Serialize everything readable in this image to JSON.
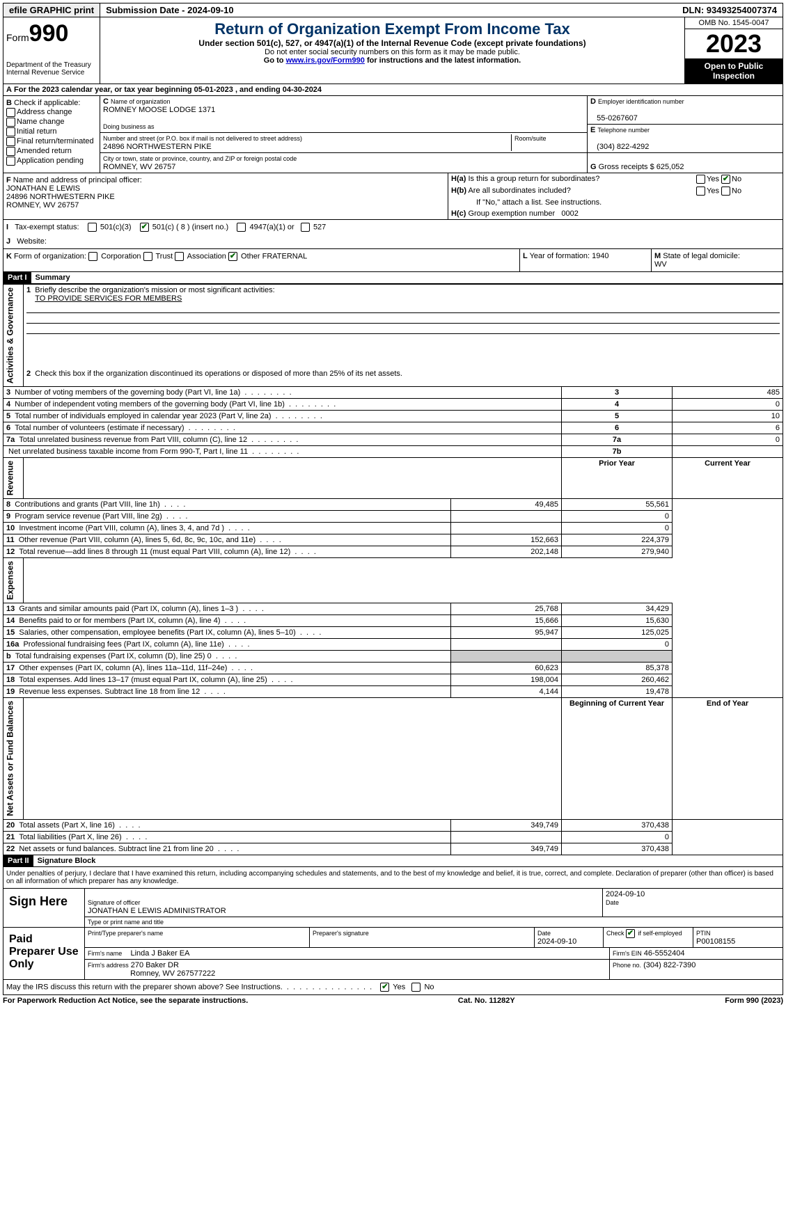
{
  "topbar": {
    "efile": "efile GRAPHIC print",
    "submission": "Submission Date - 2024-09-10",
    "dln": "DLN: 93493254007374"
  },
  "header": {
    "form_label": "Form",
    "form_number": "990",
    "dept": "Department of the Treasury",
    "irs": "Internal Revenue Service",
    "title": "Return of Organization Exempt From Income Tax",
    "subtitle": "Under section 501(c), 527, or 4947(a)(1) of the Internal Revenue Code (except private foundations)",
    "note1": "Do not enter social security numbers on this form as it may be made public.",
    "note2_pre": "Go to ",
    "note2_link": "www.irs.gov/Form990",
    "note2_post": " for instructions and the latest information.",
    "omb": "OMB No. 1545-0047",
    "year": "2023",
    "open": "Open to Public Inspection"
  },
  "A": {
    "line": "For the 2023 calendar year, or tax year beginning 05-01-2023   , and ending 04-30-2024"
  },
  "B": {
    "label": "Check if applicable:",
    "opts": [
      "Address change",
      "Name change",
      "Initial return",
      "Final return/terminated",
      "Amended return",
      "Application pending"
    ]
  },
  "C": {
    "name_label": "Name of organization",
    "name": "ROMNEY MOOSE LODGE 1371",
    "dba_label": "Doing business as",
    "dba": "",
    "addr_label": "Number and street (or P.O. box if mail is not delivered to street address)",
    "room_label": "Room/suite",
    "addr": "24896 NORTHWESTERN PIKE",
    "city_label": "City or town, state or province, country, and ZIP or foreign postal code",
    "city": "ROMNEY, WV  26757"
  },
  "D": {
    "label": "Employer identification number",
    "val": "55-0267607"
  },
  "E": {
    "label": "Telephone number",
    "val": "(304) 822-4292"
  },
  "G": {
    "label": "Gross receipts $",
    "val": "625,052"
  },
  "F": {
    "label": "Name and address of principal officer:",
    "name": "JONATHAN E LEWIS",
    "addr1": "24896 NORTHWESTERN PIKE",
    "addr2": "ROMNEY, WV  26757"
  },
  "H": {
    "a": "Is this a group return for subordinates?",
    "b": "Are all subordinates included?",
    "b_note": "If \"No,\" attach a list. See instructions.",
    "c": "Group exemption number",
    "c_val": "0002",
    "yes": "Yes",
    "no": "No"
  },
  "I": {
    "label": "Tax-exempt status:",
    "o1": "501(c)(3)",
    "o2": "501(c) ( 8 ) (insert no.)",
    "o3": "4947(a)(1) or",
    "o4": "527"
  },
  "J": {
    "label": "Website:",
    "val": ""
  },
  "K": {
    "label": "Form of organization:",
    "o1": "Corporation",
    "o2": "Trust",
    "o3": "Association",
    "o4": "Other",
    "o4_val": "FRATERNAL"
  },
  "L": {
    "label": "Year of formation:",
    "val": "1940"
  },
  "M": {
    "label": "State of legal domicile:",
    "val": "WV"
  },
  "part1": {
    "header": "Part I",
    "title": "Summary",
    "line1_label": "Briefly describe the organization's mission or most significant activities:",
    "line1_val": "TO PROVIDE SERVICES FOR MEMBERS",
    "line2": "Check this box      if the organization discontinued its operations or disposed of more than 25% of its net assets.",
    "sections": {
      "ag": "Activities & Governance",
      "rev": "Revenue",
      "exp": "Expenses",
      "na": "Net Assets or Fund Balances"
    },
    "rows_single": [
      {
        "n": "3",
        "t": "Number of voting members of the governing body (Part VI, line 1a)",
        "box": "3",
        "v": "485"
      },
      {
        "n": "4",
        "t": "Number of independent voting members of the governing body (Part VI, line 1b)",
        "box": "4",
        "v": "0"
      },
      {
        "n": "5",
        "t": "Total number of individuals employed in calendar year 2023 (Part V, line 2a)",
        "box": "5",
        "v": "10"
      },
      {
        "n": "6",
        "t": "Total number of volunteers (estimate if necessary)",
        "box": "6",
        "v": "6"
      },
      {
        "n": "7a",
        "t": "Total unrelated business revenue from Part VIII, column (C), line 12",
        "box": "7a",
        "v": "0"
      },
      {
        "n": "",
        "t": "Net unrelated business taxable income from Form 990-T, Part I, line 11",
        "box": "7b",
        "v": ""
      }
    ],
    "col_prior": "Prior Year",
    "col_current": "Current Year",
    "rows_rev": [
      {
        "n": "8",
        "t": "Contributions and grants (Part VIII, line 1h)",
        "p": "49,485",
        "c": "55,561"
      },
      {
        "n": "9",
        "t": "Program service revenue (Part VIII, line 2g)",
        "p": "",
        "c": "0"
      },
      {
        "n": "10",
        "t": "Investment income (Part VIII, column (A), lines 3, 4, and 7d )",
        "p": "",
        "c": "0"
      },
      {
        "n": "11",
        "t": "Other revenue (Part VIII, column (A), lines 5, 6d, 8c, 9c, 10c, and 11e)",
        "p": "152,663",
        "c": "224,379"
      },
      {
        "n": "12",
        "t": "Total revenue—add lines 8 through 11 (must equal Part VIII, column (A), line 12)",
        "p": "202,148",
        "c": "279,940"
      }
    ],
    "rows_exp": [
      {
        "n": "13",
        "t": "Grants and similar amounts paid (Part IX, column (A), lines 1–3 )",
        "p": "25,768",
        "c": "34,429"
      },
      {
        "n": "14",
        "t": "Benefits paid to or for members (Part IX, column (A), line 4)",
        "p": "15,666",
        "c": "15,630"
      },
      {
        "n": "15",
        "t": "Salaries, other compensation, employee benefits (Part IX, column (A), lines 5–10)",
        "p": "95,947",
        "c": "125,025"
      },
      {
        "n": "16a",
        "t": "Professional fundraising fees (Part IX, column (A), line 11e)",
        "p": "",
        "c": "0"
      },
      {
        "n": "b",
        "t": "Total fundraising expenses (Part IX, column (D), line 25) 0",
        "p": "GREY",
        "c": "GREY"
      },
      {
        "n": "17",
        "t": "Other expenses (Part IX, column (A), lines 11a–11d, 11f–24e)",
        "p": "60,623",
        "c": "85,378"
      },
      {
        "n": "18",
        "t": "Total expenses. Add lines 13–17 (must equal Part IX, column (A), line 25)",
        "p": "198,004",
        "c": "260,462"
      },
      {
        "n": "19",
        "t": "Revenue less expenses. Subtract line 18 from line 12",
        "p": "4,144",
        "c": "19,478"
      }
    ],
    "col_begin": "Beginning of Current Year",
    "col_end": "End of Year",
    "rows_na": [
      {
        "n": "20",
        "t": "Total assets (Part X, line 16)",
        "p": "349,749",
        "c": "370,438"
      },
      {
        "n": "21",
        "t": "Total liabilities (Part X, line 26)",
        "p": "",
        "c": "0"
      },
      {
        "n": "22",
        "t": "Net assets or fund balances. Subtract line 21 from line 20",
        "p": "349,749",
        "c": "370,438"
      }
    ]
  },
  "part2": {
    "header": "Part II",
    "title": "Signature Block",
    "decl": "Under penalties of perjury, I declare that I have examined this return, including accompanying schedules and statements, and to the best of my knowledge and belief, it is true, correct, and complete. Declaration of preparer (other than officer) is based on all information of which preparer has any knowledge."
  },
  "sign": {
    "here": "Sign Here",
    "sig_label": "Signature of officer",
    "officer": "JONATHAN E LEWIS ADMINISTRATOR",
    "name_label": "Type or print name and title",
    "date_label": "Date",
    "date": "2024-09-10"
  },
  "paid": {
    "label": "Paid Preparer Use Only",
    "name_label": "Print/Type preparer's name",
    "sig_label": "Preparer's signature",
    "date_label": "Date",
    "date": "2024-09-10",
    "self_label": "Check       if self-employed",
    "ptin_label": "PTIN",
    "ptin": "P00108155",
    "firm_name_label": "Firm's name",
    "firm_name": "Linda J Baker EA",
    "firm_ein_label": "Firm's EIN",
    "firm_ein": "46-5552404",
    "firm_addr_label": "Firm's address",
    "firm_addr1": "270 Baker DR",
    "firm_addr2": "Romney, WV  267577222",
    "phone_label": "Phone no.",
    "phone": "(304) 822-7390"
  },
  "discuss": {
    "q": "May the IRS discuss this return with the preparer shown above? See Instructions.",
    "yes": "Yes",
    "no": "No"
  },
  "footer": {
    "left": "For Paperwork Reduction Act Notice, see the separate instructions.",
    "mid": "Cat. No. 11282Y",
    "right": "Form 990 (2023)"
  }
}
